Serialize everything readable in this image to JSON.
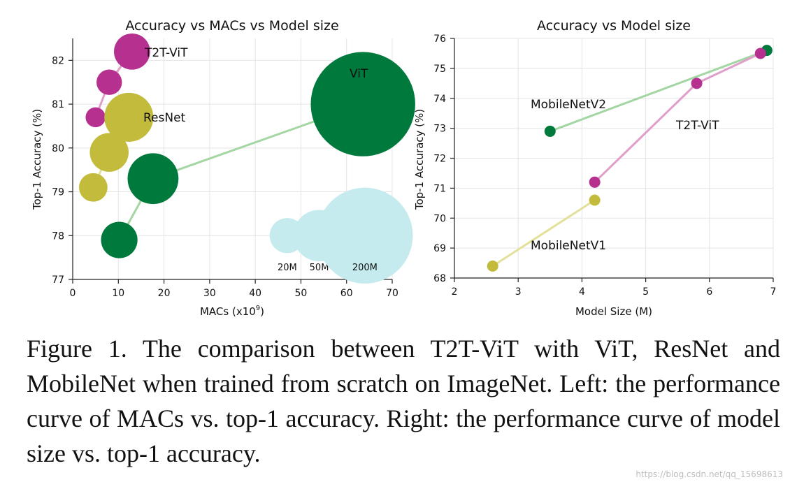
{
  "chart_data": [
    {
      "type": "scatter",
      "title": "Accuracy vs MACs vs Model size",
      "xlabel": "MACs (x10",
      "xlabel_sup": "9",
      "xlabel_close": ")",
      "ylabel": "Top-1 Accuracy (%)",
      "xlim": [
        0,
        70
      ],
      "ylim": [
        77,
        82.5
      ],
      "xticks": [
        0,
        10,
        20,
        30,
        40,
        50,
        60,
        70
      ],
      "yticks": [
        77,
        78,
        79,
        80,
        81,
        82
      ],
      "grid": true,
      "series": [
        {
          "name": "T2T-ViT",
          "color": "#b5308f",
          "line_color": "#e09fcb",
          "x": [
            5,
            8,
            13
          ],
          "y": [
            80.7,
            81.5,
            82.2
          ],
          "size": [
            4.2,
            8.6,
            21.5
          ]
        },
        {
          "name": "ResNet",
          "color": "#c2bb3c",
          "line_color": "#e2e09a",
          "x": [
            4.5,
            8,
            12.3
          ],
          "y": [
            79.1,
            79.9,
            80.7
          ],
          "size": [
            11.7,
            25.6,
            44.6
          ]
        },
        {
          "name": "ViT",
          "color": "#00793c",
          "line_color": "#a3d6a3",
          "x": [
            10.2,
            17.6,
            63.6
          ],
          "y": [
            77.9,
            79.3,
            81.0
          ],
          "size": [
            22,
            48.6,
            240
          ]
        }
      ],
      "size_legend": {
        "labels": [
          "20M",
          "50M",
          "200M"
        ],
        "values": [
          20,
          50,
          200
        ],
        "x": [
          47,
          54,
          64
        ],
        "y": 78.0,
        "color": "#c5ebee"
      }
    },
    {
      "type": "line",
      "title": "Accuracy vs Model size",
      "xlabel": "Model Size (M)",
      "ylabel": "Top-1 Accuracy (%)",
      "xlim": [
        2,
        7
      ],
      "ylim": [
        68,
        76
      ],
      "xticks": [
        2,
        3,
        4,
        5,
        6,
        7
      ],
      "yticks": [
        68,
        69,
        70,
        71,
        72,
        73,
        74,
        75,
        76
      ],
      "grid": true,
      "series": [
        {
          "name": "MobileNetV2",
          "color": "#00793c",
          "line_color": "#a3d6a3",
          "x": [
            3.5,
            6.9
          ],
          "y": [
            72.9,
            75.6
          ]
        },
        {
          "name": "T2T-ViT",
          "color": "#b5308f",
          "line_color": "#e09fcb",
          "x": [
            4.2,
            5.8,
            6.8
          ],
          "y": [
            71.2,
            74.5,
            75.5
          ]
        },
        {
          "name": "MobileNetV1",
          "color": "#c2bb3c",
          "line_color": "#e2e09a",
          "x": [
            2.6,
            4.2
          ],
          "y": [
            68.4,
            70.6
          ]
        }
      ]
    }
  ],
  "caption": "Figure 1. The comparison between T2T-ViT with ViT, ResNet and MobileNet when trained from scratch on ImageNet. Left: the performance curve of MACs vs. top-1 accuracy. Right: the performance curve of model size vs. top-1 accuracy.",
  "watermark": "https://blog.csdn.net/qq_15698613"
}
